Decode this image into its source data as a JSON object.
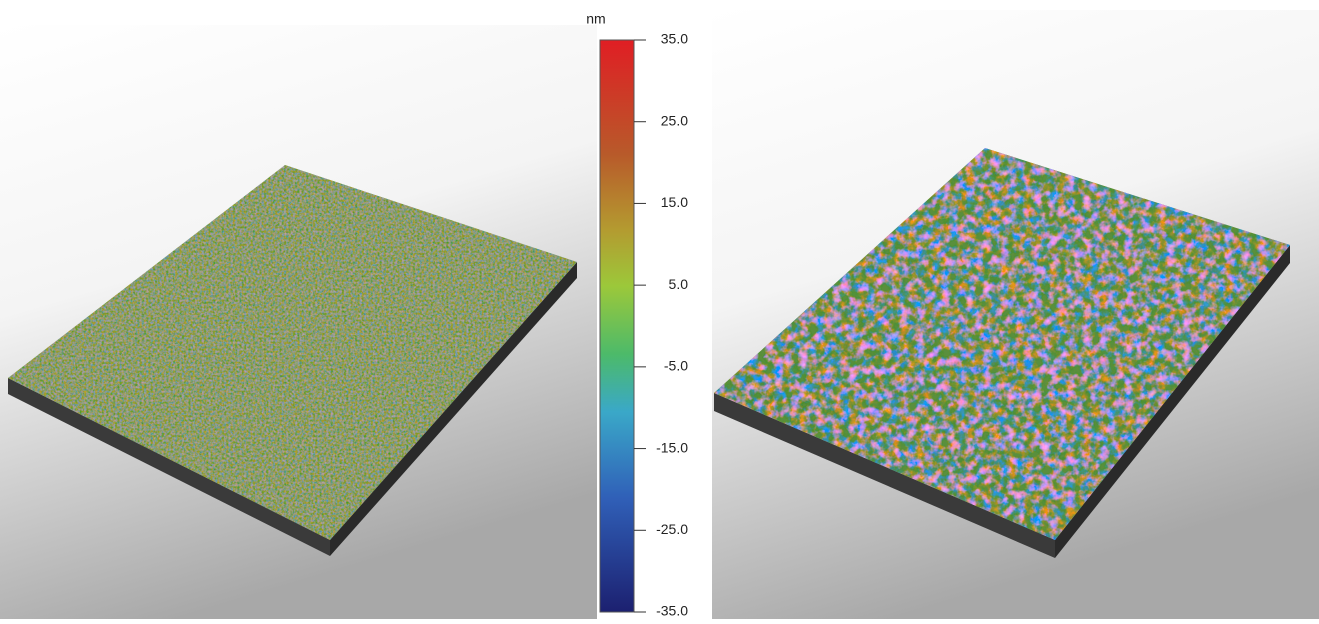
{
  "colorbar": {
    "unit": "nm",
    "range": [
      -35,
      35
    ],
    "ticks": [
      {
        "value": 35,
        "label": "35.0"
      },
      {
        "value": 25,
        "label": "25.0"
      },
      {
        "value": 15,
        "label": "15.0"
      },
      {
        "value": 5,
        "label": "5.0"
      },
      {
        "value": -5,
        "label": "-5.0"
      },
      {
        "value": -15,
        "label": "-15.0"
      },
      {
        "value": -25,
        "label": "-25.0"
      },
      {
        "value": -35,
        "label": "-35.0"
      }
    ]
  }
}
